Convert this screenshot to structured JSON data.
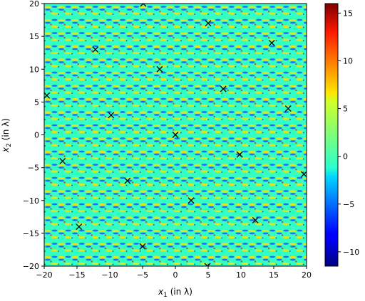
{
  "chart_data": {
    "type": "heatmap",
    "title": "",
    "xlabel": {
      "var": "x",
      "sub": "1",
      "suffix": " (in λ)"
    },
    "ylabel": {
      "var": "x",
      "sub": "2",
      "suffix": " (in λ)"
    },
    "xlim": [
      -20,
      20
    ],
    "ylim": [
      -20,
      20
    ],
    "xticks": [
      -20,
      -15,
      -10,
      -5,
      0,
      5,
      10,
      15,
      20
    ],
    "yticks": [
      -20,
      -15,
      -10,
      -5,
      0,
      5,
      10,
      15,
      20
    ],
    "colorbar": {
      "range": [
        -11.5,
        16
      ],
      "ticks": [
        -10,
        -5,
        0,
        5,
        10,
        15
      ],
      "colormap": "jet"
    },
    "markers": {
      "symbol": "x",
      "points": [
        [
          0,
          0
        ],
        [
          2.4,
          -10
        ],
        [
          4.9,
          -20
        ],
        [
          -2.4,
          10
        ],
        [
          -4.9,
          20
        ],
        [
          7.3,
          7
        ],
        [
          9.8,
          -3
        ],
        [
          12.2,
          -13
        ],
        [
          5,
          17
        ],
        [
          -7.3,
          -7
        ],
        [
          -9.8,
          3
        ],
        [
          -12.2,
          13
        ],
        [
          -5,
          -17
        ],
        [
          14.7,
          14
        ],
        [
          17.2,
          4
        ],
        [
          19.6,
          -6
        ],
        [
          -14.7,
          -14
        ],
        [
          -17.2,
          -4
        ],
        [
          -19.6,
          6
        ]
      ]
    },
    "field_note_colors": {
      "background": "#33ffc4",
      "pos": "#ffdd00",
      "neg": "#0044ff"
    }
  }
}
